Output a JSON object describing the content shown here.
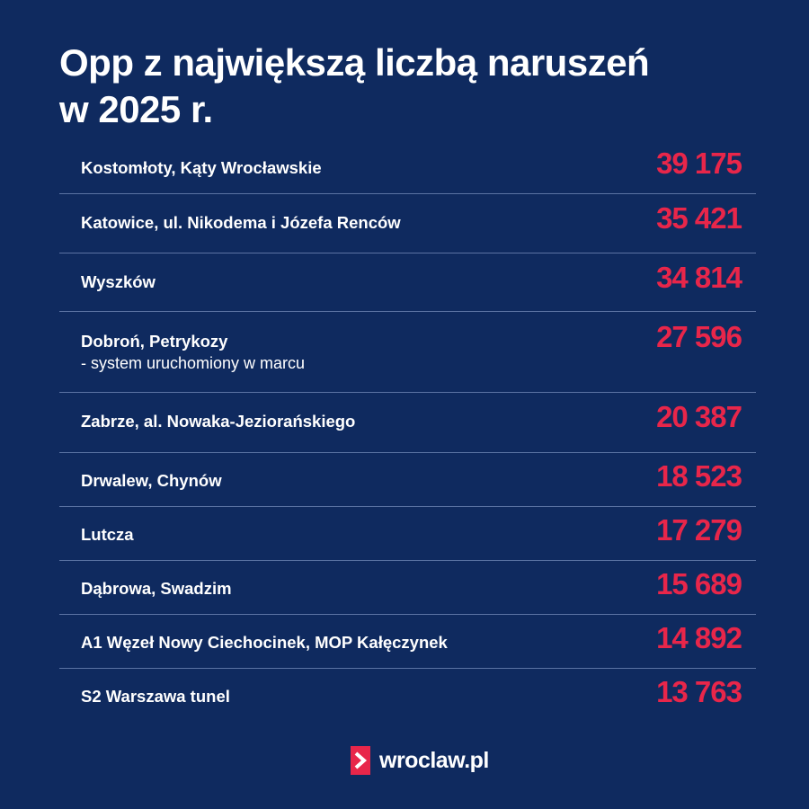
{
  "title_line1": "Opp z największą liczbą naruszeń",
  "title_line2": "w 2025 r.",
  "logo_text": "wroclaw.pl",
  "colors": {
    "background": "#0f2a5f",
    "value": "#e8264a",
    "separator": "#5b73a3"
  },
  "chart_data": {
    "type": "table",
    "title": "Opp z największą liczbą naruszeń w 2025 r.",
    "rows": [
      {
        "label": "Kostomłoty, Kąty Wrocławskie",
        "note": "",
        "value": "39 175"
      },
      {
        "label": "Katowice, ul. Nikodema i Józefa Renców",
        "note": "",
        "value": "35 421"
      },
      {
        "label": "Wyszków",
        "note": "",
        "value": "34 814"
      },
      {
        "label": "Dobroń, Petrykozy",
        "note": "- system uruchomiony w marcu",
        "value": "27 596"
      },
      {
        "label": "Zabrze, al. Nowaka-Jeziorańskiego",
        "note": "",
        "value": "20 387"
      },
      {
        "label": "Drwalew, Chynów",
        "note": "",
        "value": "18 523"
      },
      {
        "label": "Lutcza",
        "note": "",
        "value": "17 279"
      },
      {
        "label": "Dąbrowa, Swadzim",
        "note": "",
        "value": "15 689"
      },
      {
        "label": "A1 Węzeł Nowy Ciechocinek, MOP Kałęczynek",
        "note": "",
        "value": "14 892"
      },
      {
        "label": "S2 Warszawa tunel",
        "note": "",
        "value": "13 763"
      }
    ]
  }
}
